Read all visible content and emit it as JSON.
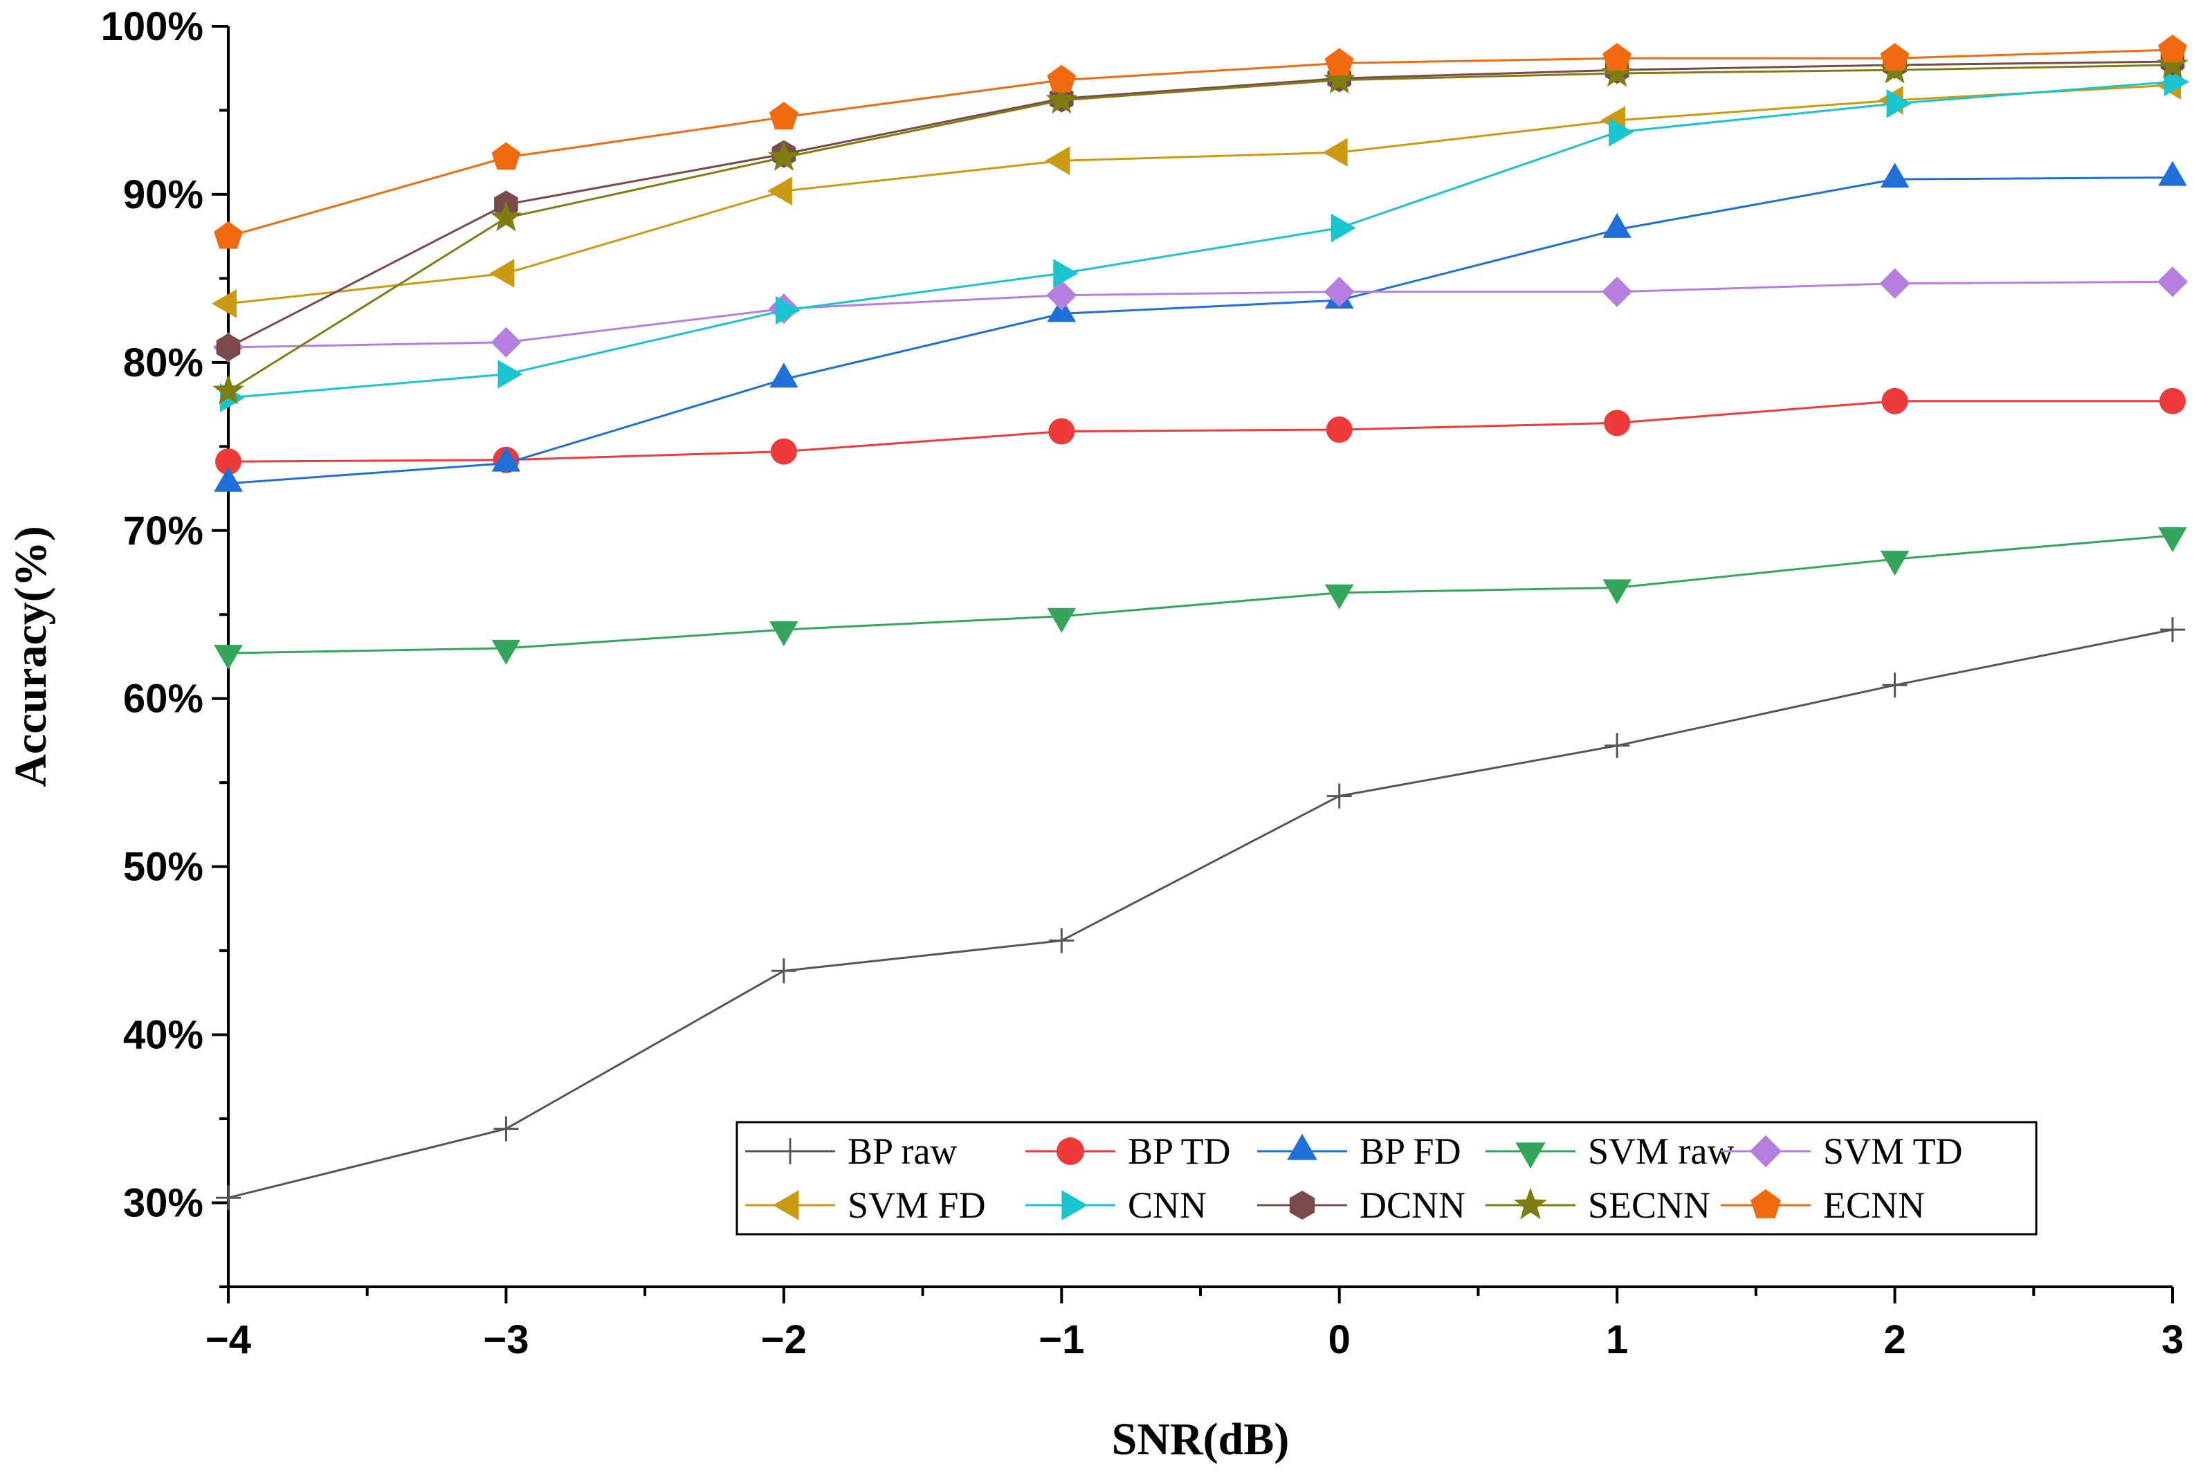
{
  "chart_data": {
    "type": "line",
    "xlabel": "SNR(dB)",
    "ylabel": "Accuracy(%)",
    "x": [
      -4,
      -3,
      -2,
      -1,
      0,
      1,
      2,
      3
    ],
    "x_tick_labels": [
      "−4",
      "−3",
      "−2",
      "−1",
      "0",
      "1",
      "2",
      "3"
    ],
    "xlim": [
      -4,
      3
    ],
    "ylim": [
      25,
      100
    ],
    "y_ticks": [
      30,
      40,
      50,
      60,
      70,
      80,
      90,
      100
    ],
    "y_tick_labels": [
      "30%",
      "40%",
      "50%",
      "60%",
      "70%",
      "80%",
      "90%",
      "100%"
    ],
    "grid": false,
    "legend_position": "bottom-right",
    "series": [
      {
        "name": "BP raw",
        "color": "#555555",
        "marker": "plus",
        "values": [
          30.3,
          34.4,
          43.8,
          45.6,
          54.2,
          57.2,
          60.8,
          64.1
        ]
      },
      {
        "name": "BP TD",
        "color": "#ee3a3a",
        "marker": "circle",
        "values": [
          74.1,
          74.2,
          74.7,
          75.9,
          76.0,
          76.4,
          77.7,
          77.7
        ]
      },
      {
        "name": "BP FD",
        "color": "#1f6fd8",
        "marker": "triangle-up",
        "values": [
          72.8,
          74.0,
          79.0,
          82.9,
          83.7,
          87.9,
          90.9,
          91.0
        ]
      },
      {
        "name": "SVM raw",
        "color": "#33a65c",
        "marker": "triangle-down",
        "values": [
          62.7,
          63.0,
          64.1,
          64.9,
          66.3,
          66.6,
          68.3,
          69.7
        ]
      },
      {
        "name": "SVM TD",
        "color": "#b57ee0",
        "marker": "diamond",
        "values": [
          80.9,
          81.2,
          83.2,
          84.0,
          84.2,
          84.2,
          84.7,
          84.8
        ]
      },
      {
        "name": "SVM FD",
        "color": "#cc9a10",
        "marker": "triangle-left",
        "values": [
          83.5,
          85.3,
          90.2,
          92.0,
          92.5,
          94.4,
          95.6,
          96.5
        ]
      },
      {
        "name": "CNN",
        "color": "#18c4cf",
        "marker": "triangle-right",
        "values": [
          77.9,
          79.3,
          83.1,
          85.3,
          88.0,
          93.7,
          95.4,
          96.7
        ]
      },
      {
        "name": "DCNN",
        "color": "#7a4a4a",
        "marker": "hexagon",
        "values": [
          80.9,
          89.4,
          92.4,
          95.7,
          96.9,
          97.4,
          97.7,
          97.9
        ]
      },
      {
        "name": "SECNN",
        "color": "#7e7e10",
        "marker": "star",
        "values": [
          78.3,
          88.6,
          92.2,
          95.6,
          96.8,
          97.2,
          97.4,
          97.7
        ]
      },
      {
        "name": "ECNN",
        "color": "#f26a0f",
        "marker": "pentagon",
        "values": [
          87.5,
          92.2,
          94.6,
          96.8,
          97.8,
          98.1,
          98.1,
          98.6
        ]
      }
    ]
  }
}
